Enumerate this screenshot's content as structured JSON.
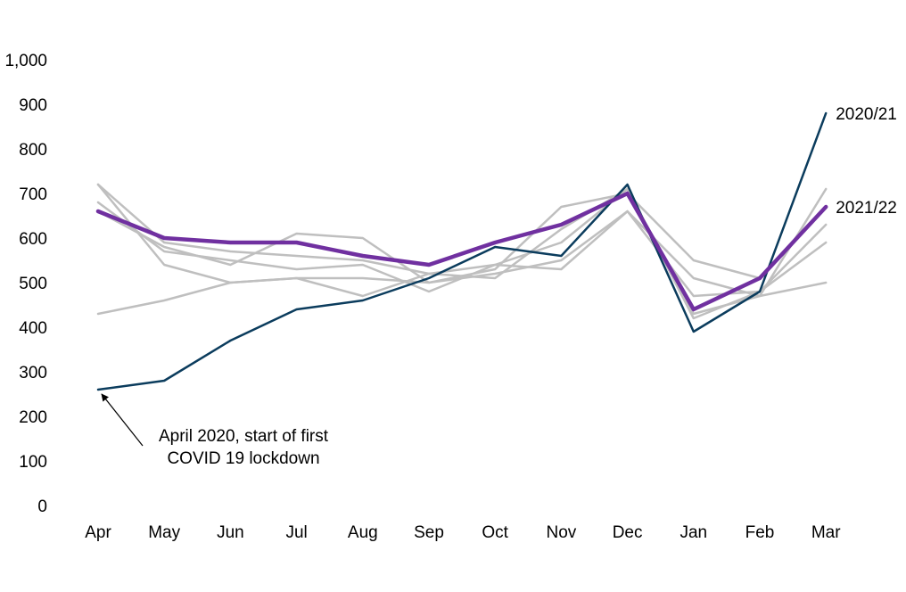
{
  "chart_data": {
    "type": "line",
    "categories": [
      "Apr",
      "May",
      "Jun",
      "Jul",
      "Aug",
      "Sep",
      "Oct",
      "Nov",
      "Dec",
      "Jan",
      "Feb",
      "Mar"
    ],
    "ylim": [
      0,
      1000
    ],
    "yticks": [
      0,
      100,
      200,
      300,
      400,
      500,
      600,
      700,
      800,
      900,
      1000
    ],
    "ytick_labels": [
      "0",
      "100",
      "200",
      "300",
      "400",
      "500",
      "600",
      "700",
      "800",
      "900",
      "1,000"
    ],
    "grid": false,
    "colors": {
      "background_series": "#bfbfbf",
      "highlight_2020_21": "#0b3c5d",
      "highlight_2021_22": "#7030a0",
      "axis": "#000000"
    },
    "series": [
      {
        "values": [
          720,
          590,
          570,
          560,
          550,
          520,
          540,
          530,
          660,
          510,
          470,
          710
        ],
        "style": "background"
      },
      {
        "values": [
          720,
          540,
          500,
          510,
          510,
          500,
          520,
          550,
          660,
          470,
          480,
          630
        ],
        "style": "background"
      },
      {
        "values": [
          680,
          570,
          550,
          530,
          540,
          480,
          540,
          590,
          710,
          420,
          480,
          590
        ],
        "style": "background"
      },
      {
        "values": [
          660,
          580,
          540,
          610,
          600,
          500,
          530,
          670,
          700,
          550,
          510,
          670
        ],
        "style": "background"
      },
      {
        "values": [
          430,
          460,
          500,
          510,
          470,
          520,
          510,
          620,
          710,
          430,
          470,
          500
        ],
        "style": "background"
      },
      {
        "name": "2020/21",
        "values": [
          260,
          280,
          370,
          440,
          460,
          510,
          580,
          560,
          720,
          390,
          480,
          880
        ],
        "style": "highlight_2020_21"
      },
      {
        "name": "2021/22",
        "values": [
          660,
          600,
          590,
          590,
          560,
          540,
          590,
          630,
          700,
          440,
          510,
          670
        ],
        "style": "highlight_2021_22"
      }
    ],
    "annotations": [
      {
        "lines": [
          "April 2020, start of first",
          "COVID 19 lockdown"
        ],
        "category": "Apr",
        "value": 260
      }
    ]
  }
}
